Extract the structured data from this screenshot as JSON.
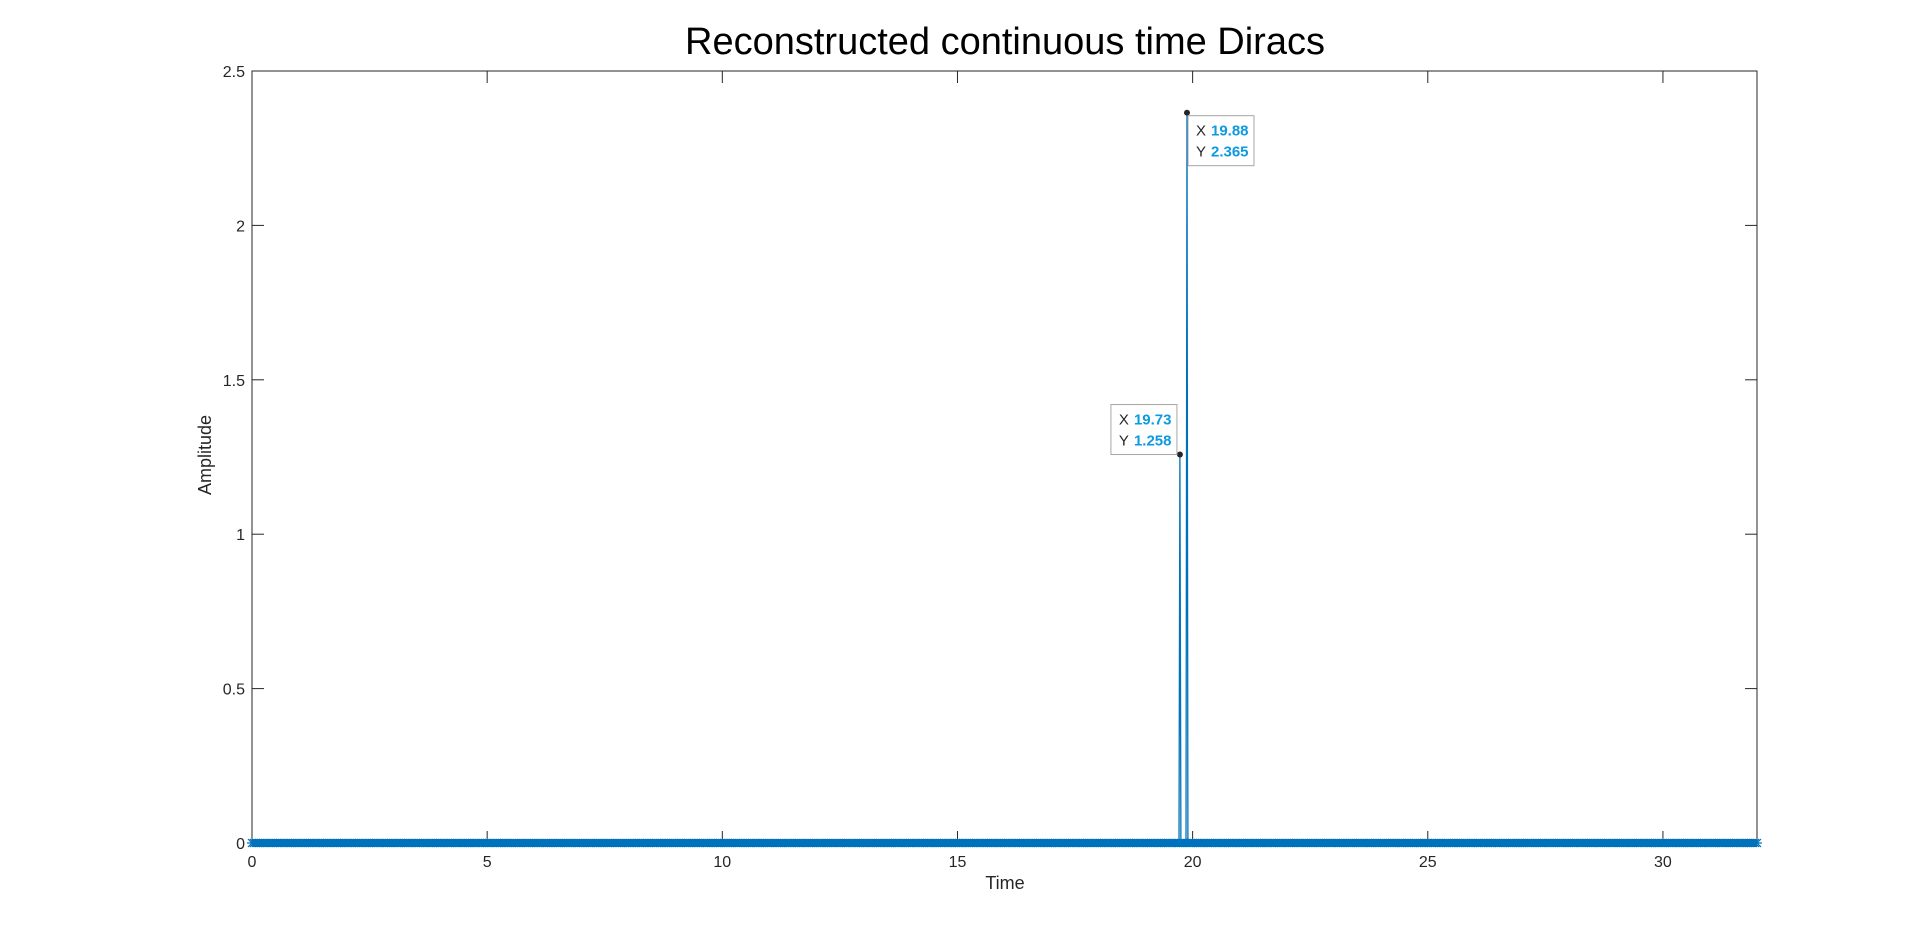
{
  "chart_data": {
    "type": "line",
    "title": "Reconstructed continuous time Diracs",
    "xlabel": "Time",
    "ylabel": "Amplitude",
    "xlim": [
      0,
      32
    ],
    "ylim": [
      0,
      2.5
    ],
    "xticks": [
      0,
      5,
      10,
      15,
      20,
      25,
      30
    ],
    "xtick_labels": [
      "0",
      "5",
      "10",
      "15",
      "20",
      "25",
      "30"
    ],
    "yticks": [
      0,
      0.5,
      1,
      1.5,
      2,
      2.5
    ],
    "ytick_labels": [
      "0",
      "0.5",
      "1",
      "1.5",
      "2",
      "2.5"
    ],
    "grid": false,
    "box": true,
    "series": [
      {
        "color": "#0072BD",
        "marker": "asterisk",
        "baseline_samples": {
          "start": 0,
          "end": 32,
          "step": 0.04,
          "value": 0
        },
        "spikes": [
          {
            "x": 19.73,
            "y": 1.258
          },
          {
            "x": 19.88,
            "y": 2.365
          }
        ]
      }
    ],
    "datatips": [
      {
        "x_label": "X",
        "x_value": "19.73",
        "y_label": "Y",
        "y_value": "1.258",
        "x": 19.73,
        "y": 1.258,
        "placement": "left"
      },
      {
        "x_label": "X",
        "x_value": "19.88",
        "y_label": "Y",
        "y_value": "2.365",
        "x": 19.88,
        "y": 2.365,
        "placement": "right"
      }
    ],
    "colors": {
      "line": "#0072BD",
      "axes": "#262626",
      "datatip_value": "#0E9AE0",
      "datatip_border": "#A6A6A6",
      "datatip_point": "#262626"
    }
  }
}
